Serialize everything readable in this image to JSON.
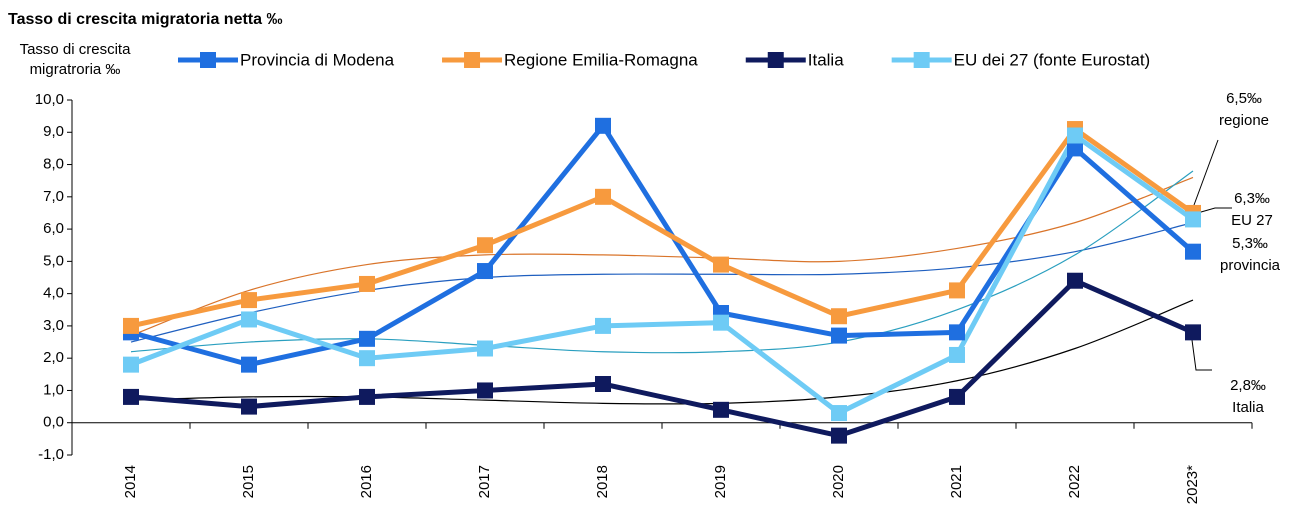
{
  "chart_data": {
    "type": "line",
    "title": "Tasso di crescita migratoria netta ‰",
    "y_label": [
      "Tasso di crescita",
      "migratroria ‰"
    ],
    "categories": [
      "2014",
      "2015",
      "2016",
      "2017",
      "2018",
      "2019",
      "2020",
      "2021",
      "2022",
      "2023*"
    ],
    "series": [
      {
        "name": "Provincia di Modena",
        "color": "#1f6fe0",
        "trend_color": "#1f5fbf",
        "values": [
          2.8,
          1.8,
          2.6,
          4.7,
          9.2,
          3.4,
          2.7,
          2.8,
          8.5,
          5.3
        ],
        "trend_values": [
          2.5,
          3.4,
          4.1,
          4.5,
          4.6,
          4.6,
          4.6,
          4.8,
          5.3,
          6.2
        ]
      },
      {
        "name": "Regione Emilia-Romagna",
        "color": "#f79a3e",
        "trend_color": "#d9742a",
        "values": [
          3.0,
          3.8,
          4.3,
          5.5,
          7.0,
          4.9,
          3.3,
          4.1,
          9.1,
          6.5
        ],
        "trend_values": [
          2.7,
          4.1,
          4.9,
          5.2,
          5.2,
          5.1,
          5.0,
          5.4,
          6.2,
          7.6
        ]
      },
      {
        "name": "Italia",
        "color": "#0f1a5e",
        "trend_color": "#000000",
        "values": [
          0.8,
          0.5,
          0.8,
          1.0,
          1.2,
          0.4,
          -0.4,
          0.8,
          4.4,
          2.8
        ],
        "trend_values": [
          0.7,
          0.8,
          0.8,
          0.7,
          0.6,
          0.6,
          0.8,
          1.3,
          2.3,
          3.8
        ]
      },
      {
        "name": "EU dei 27 (fonte Eurostat)",
        "color": "#6ecbf5",
        "trend_color": "#2a9fbf",
        "values": [
          1.8,
          3.2,
          2.0,
          2.3,
          3.0,
          3.1,
          0.3,
          2.1,
          8.9,
          6.3
        ],
        "trend_values": [
          2.2,
          2.5,
          2.6,
          2.4,
          2.2,
          2.2,
          2.5,
          3.5,
          5.2,
          7.8
        ]
      }
    ],
    "ylim": [
      -1,
      10
    ],
    "yticks": [
      {
        "value": -1,
        "label": "-1,0"
      },
      {
        "value": 0,
        "label": "0,0"
      },
      {
        "value": 1,
        "label": "1,0"
      },
      {
        "value": 2,
        "label": "2,0"
      },
      {
        "value": 3,
        "label": "3,0"
      },
      {
        "value": 4,
        "label": "4,0"
      },
      {
        "value": 5,
        "label": "5,0"
      },
      {
        "value": 6,
        "label": "6,0"
      },
      {
        "value": 7,
        "label": "7,0"
      },
      {
        "value": 8,
        "label": "8,0"
      },
      {
        "value": 9,
        "label": "9,0"
      },
      {
        "value": 10,
        "label": "10,0"
      }
    ],
    "annotations": [
      [
        "6,5‰",
        "regione"
      ],
      [
        "6,3‰",
        "EU 27"
      ],
      [
        "5,3‰",
        "provincia"
      ],
      [
        "2,8‰",
        "Italia"
      ]
    ]
  }
}
